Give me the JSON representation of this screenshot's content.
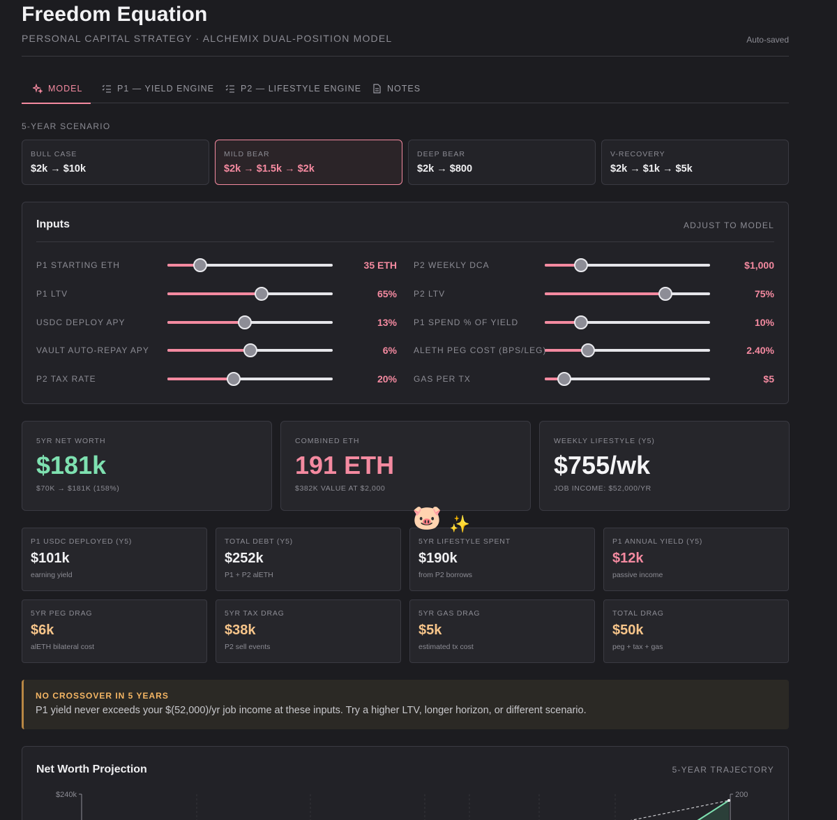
{
  "header": {
    "title": "Freedom Equation",
    "subtitle": "PERSONAL CAPITAL STRATEGY · ALCHEMIX DUAL-POSITION MODEL",
    "autosave": "Auto-saved"
  },
  "tabs": [
    {
      "label": "MODEL",
      "icon": "sparkles-icon",
      "active": true
    },
    {
      "label": "P1 — YIELD ENGINE",
      "icon": "checklist-icon",
      "active": false
    },
    {
      "label": "P2 — LIFESTYLE ENGINE",
      "icon": "checklist-icon",
      "active": false
    },
    {
      "label": "NOTES",
      "icon": "document-icon",
      "active": false
    }
  ],
  "scenario_section_label": "5-YEAR SCENARIO",
  "scenarios": [
    {
      "label": "BULL CASE",
      "value": "$2k → $10k",
      "active": false
    },
    {
      "label": "MILD BEAR",
      "value": "$2k → $1.5k → $2k",
      "active": true
    },
    {
      "label": "DEEP BEAR",
      "value": "$2k → $800",
      "active": false
    },
    {
      "label": "V-RECOVERY",
      "value": "$2k → $1k → $5k",
      "active": false
    }
  ],
  "inputs": {
    "title": "Inputs",
    "hint": "ADJUST TO MODEL",
    "left": [
      {
        "label": "P1 STARTING ETH",
        "value": "35 ETH",
        "level": 0.2
      },
      {
        "label": "P1 LTV",
        "value": "65%",
        "level": 0.57
      },
      {
        "label": "USDC DEPLOY APY",
        "value": "13%",
        "level": 0.47
      },
      {
        "label": "VAULT AUTO-REPAY APY",
        "value": "6%",
        "level": 0.5
      },
      {
        "label": "P2 TAX RATE",
        "value": "20%",
        "level": 0.4
      }
    ],
    "right": [
      {
        "label": "P2 WEEKLY DCA",
        "value": "$1,000",
        "level": 0.22
      },
      {
        "label": "P2 LTV",
        "value": "75%",
        "level": 0.73
      },
      {
        "label": "P1 SPEND % OF YIELD",
        "value": "10%",
        "level": 0.22
      },
      {
        "label": "ALETH PEG COST (BPS/LEG)",
        "value": "2.40%",
        "level": 0.26
      },
      {
        "label": "GAS PER TX",
        "value": "$5",
        "level": 0.12
      }
    ]
  },
  "big_stats": [
    {
      "label": "5YR NET WORTH",
      "value": "$181k",
      "sub": "$70K → $181K (158%)",
      "color": "#7ee0b0"
    },
    {
      "label": "COMBINED ETH",
      "value": "191 ETH",
      "sub": "$382K VALUE AT $2,000",
      "color": "#f48aa0"
    },
    {
      "label": "WEEKLY LIFESTYLE (Y5)",
      "value": "$755/wk",
      "sub": "JOB INCOME: $52,000/YR",
      "color": "#f4f4f6"
    }
  ],
  "small_stats": [
    {
      "label": "P1 USDC DEPLOYED (Y5)",
      "value": "$101k",
      "sub": "earning yield",
      "color": "#f0f0f2"
    },
    {
      "label": "TOTAL DEBT (Y5)",
      "value": "$252k",
      "sub": "P1 + P2 alETH",
      "color": "#f0f0f2"
    },
    {
      "label": "5YR LIFESTYLE SPENT",
      "value": "$190k",
      "sub": "from P2 borrows",
      "color": "#f0f0f2"
    },
    {
      "label": "P1 ANNUAL YIELD (Y5)",
      "value": "$12k",
      "sub": "passive income",
      "color": "#f48aa0"
    },
    {
      "label": "5YR PEG DRAG",
      "value": "$6k",
      "sub": "alETH bilateral cost",
      "color": "#f7c58a"
    },
    {
      "label": "5YR TAX DRAG",
      "value": "$38k",
      "sub": "P2 sell events",
      "color": "#f7c58a"
    },
    {
      "label": "5YR GAS DRAG",
      "value": "$5k",
      "sub": "estimated tx cost",
      "color": "#f7c58a"
    },
    {
      "label": "TOTAL DRAG",
      "value": "$50k",
      "sub": "peg + tax + gas",
      "color": "#f7c58a"
    }
  ],
  "decorations": {
    "pig": "🐷",
    "sparkle": "✨"
  },
  "alert": {
    "title": "NO CROSSOVER IN 5 YEARS",
    "text": "P1 yield never exceeds your $(52,000)/yr job income at these inputs. Try a higher LTV, longer horizon, or different scenario."
  },
  "chart": {
    "title": "Net Worth Projection",
    "hint": "5-YEAR TRAJECTORY"
  },
  "chart_data": {
    "type": "area",
    "y_left_ticks": [
      "$240k"
    ],
    "y_right_ticks": [
      "200"
    ],
    "colors": {
      "net_worth": "#7ee0b0",
      "eth": "#c8c8cc"
    }
  },
  "colors": {
    "accent": "#f48aa0",
    "positive": "#7ee0b0",
    "warning": "#f5b664"
  }
}
